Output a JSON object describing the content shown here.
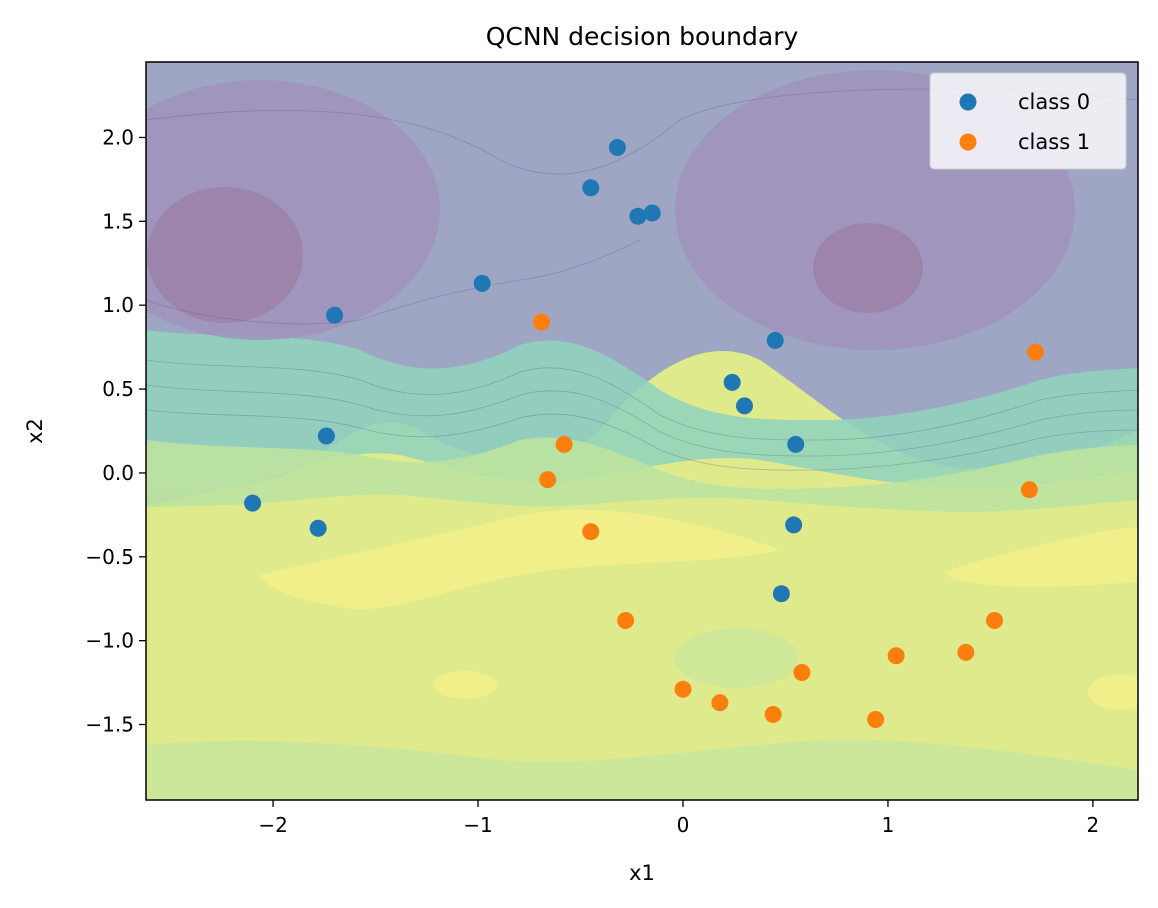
{
  "chart_data": {
    "type": "scatter",
    "title": "QCNN decision boundary",
    "xlabel": "x1",
    "ylabel": "x2",
    "xlim": [
      -2.62,
      2.22
    ],
    "ylim": [
      -1.95,
      2.45
    ],
    "x_ticks": [
      -2,
      -1,
      0,
      1,
      2
    ],
    "y_ticks": [
      -1.5,
      -1.0,
      -0.5,
      0.0,
      0.5,
      1.0,
      1.5,
      2.0
    ],
    "x_tick_labels": [
      "−2",
      "−1",
      "0",
      "1",
      "2"
    ],
    "y_tick_labels": [
      "−1.5",
      "−1.0",
      "−0.5",
      "0.0",
      "0.5",
      "1.0",
      "1.5",
      "2.0"
    ],
    "grid": false,
    "legend_position": "top-right",
    "background": "filled contour decision surface (purple top lobes, teal band, yellow-green bottom)",
    "series": [
      {
        "name": "class 0",
        "color": "#1f77b4",
        "points": [
          [
            -0.32,
            1.94
          ],
          [
            -0.45,
            1.7
          ],
          [
            -0.22,
            1.53
          ],
          [
            -0.15,
            1.55
          ],
          [
            -0.98,
            1.13
          ],
          [
            -1.7,
            0.94
          ],
          [
            0.45,
            0.79
          ],
          [
            0.24,
            0.54
          ],
          [
            0.3,
            0.4
          ],
          [
            -1.74,
            0.22
          ],
          [
            0.55,
            0.17
          ],
          [
            -2.1,
            -0.18
          ],
          [
            -1.78,
            -0.33
          ],
          [
            0.54,
            -0.31
          ],
          [
            0.48,
            -0.72
          ]
        ]
      },
      {
        "name": "class 1",
        "color": "#ff7f0e",
        "points": [
          [
            -0.69,
            0.9
          ],
          [
            1.72,
            0.72
          ],
          [
            -0.58,
            0.17
          ],
          [
            -0.66,
            -0.04
          ],
          [
            1.69,
            -0.1
          ],
          [
            -0.45,
            -0.35
          ],
          [
            -0.28,
            -0.88
          ],
          [
            1.52,
            -0.88
          ],
          [
            1.38,
            -1.07
          ],
          [
            1.04,
            -1.09
          ],
          [
            0.58,
            -1.19
          ],
          [
            0.0,
            -1.29
          ],
          [
            0.18,
            -1.37
          ],
          [
            0.44,
            -1.44
          ],
          [
            0.94,
            -1.47
          ]
        ]
      }
    ]
  }
}
